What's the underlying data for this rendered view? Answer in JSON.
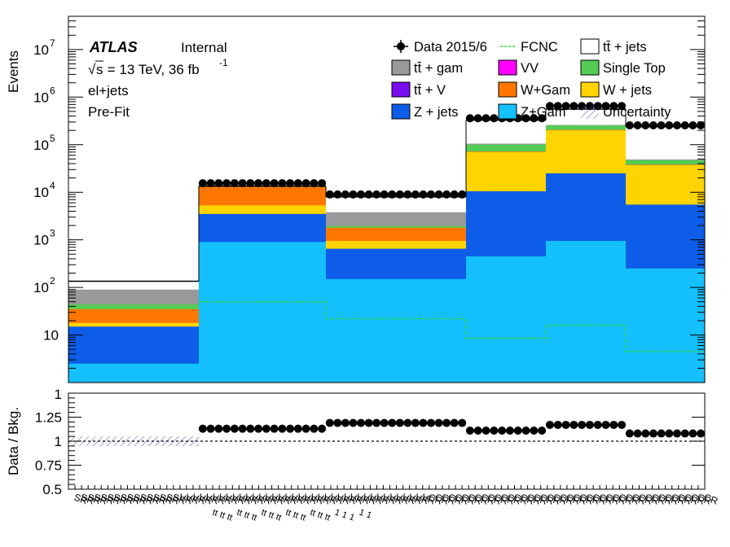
{
  "chart_data": [
    {
      "type": "bar",
      "subtype": "stacked-histogram",
      "title": "",
      "ylabel": "Events",
      "y_scale": "log",
      "ylim": [
        1,
        50000000
      ],
      "y_ticks": [
        {
          "value": 10,
          "label": "10"
        },
        {
          "value": 100,
          "label": "10",
          "sup": "2"
        },
        {
          "value": 1000,
          "label": "10",
          "sup": "3"
        },
        {
          "value": 10000,
          "label": "10",
          "sup": "4"
        },
        {
          "value": 100000,
          "label": "10",
          "sup": "5"
        },
        {
          "value": 1000000,
          "label": "10",
          "sup": "6"
        },
        {
          "value": 10000000,
          "label": "10",
          "sup": "7"
        }
      ],
      "bins": [
        {
          "stack": {
            "z_gam": 2.5,
            "z_jets": 15,
            "w_jets": 18,
            "w_gam": 35,
            "single_top": 44,
            "tt_gam": 90,
            "tt_jets": 135
          },
          "data": null,
          "fcnc": null
        },
        {
          "stack": {
            "z_gam": 900,
            "z_jets": 3500,
            "w_jets": 5300,
            "w_gam": 13000,
            "single_top": 13200,
            "tt_gam": 13400,
            "tt_jets": 13500
          },
          "data": 15500,
          "fcnc": 50
        },
        {
          "stack": {
            "z_gam": 150,
            "z_jets": 650,
            "w_jets": 950,
            "w_gam": 1800,
            "single_top": 1950,
            "tt_gam": 3800,
            "tt_jets": 8000
          },
          "data": 9000,
          "fcnc": 22
        },
        {
          "stack": {
            "z_gam": 450,
            "z_jets": 10500,
            "w_jets": 70000,
            "w_gam": 72000,
            "single_top": 100000,
            "tt_gam": 105000,
            "tt_jets": 330000
          },
          "data": 360000,
          "fcnc": 8.5
        },
        {
          "stack": {
            "z_gam": 950,
            "z_jets": 25000,
            "w_jets": 200000,
            "w_gam": 205000,
            "single_top": 255000,
            "tt_gam": 260000,
            "tt_jets": 560000
          },
          "data": 650000,
          "fcnc": 16
        },
        {
          "stack": {
            "z_gam": 250,
            "z_jets": 5500,
            "w_jets": 37000,
            "w_gam": 38000,
            "single_top": 47000,
            "tt_gam": 49000,
            "tt_jets": 240000
          },
          "data": 255000,
          "fcnc": 4.5
        }
      ],
      "series": [
        {
          "key": "tt_jets",
          "name": "tt̄ + jets",
          "color": "#ffffff"
        },
        {
          "key": "tt_gam",
          "name": "tt̄ +  gam",
          "color": "#999999"
        },
        {
          "key": "single_top",
          "name": "Single Top",
          "color": "#55cc55"
        },
        {
          "key": "w_gam",
          "name": "W+Gam",
          "color": "#ff7700"
        },
        {
          "key": "w_jets",
          "name": "W + jets",
          "color": "#ffd400"
        },
        {
          "key": "z_jets",
          "name": "Z + jets",
          "color": "#0d5de8"
        },
        {
          "key": "z_gam",
          "name": "Z+Gam",
          "color": "#14c0ff"
        },
        {
          "key": "tt_v",
          "name": "tt̄ + V",
          "color": "#7a0cf0"
        },
        {
          "key": "vv",
          "name": "VV",
          "color": "#ff00ff"
        }
      ]
    },
    {
      "type": "scatter",
      "subtype": "ratio",
      "ylabel": "Data / Bkg.",
      "ylim": [
        0.5,
        1.5
      ],
      "y_ticks": [
        {
          "value": 0.5,
          "label": "0.5"
        },
        {
          "value": 0.75,
          "label": "0.75"
        },
        {
          "value": 1,
          "label": "1"
        },
        {
          "value": 1.25,
          "label": "1.25"
        }
      ],
      "y_top_label": "1",
      "reference_line": 1,
      "ratios": [
        null,
        1.13,
        1.19,
        1.11,
        1.17,
        1.08
      ]
    }
  ],
  "legend": {
    "items": [
      {
        "label": "Data 2015/6",
        "marker": "data"
      },
      {
        "label": "FCNC",
        "marker": "dashed-line",
        "color": "#33dd33"
      },
      {
        "label": "tt̄ + jets",
        "marker": "box",
        "color": "#ffffff"
      },
      {
        "label": "tt̄ +  gam",
        "marker": "box",
        "color": "#999999"
      },
      {
        "label": "VV",
        "marker": "box",
        "color": "#ff00ff"
      },
      {
        "label": "Single Top",
        "marker": "box",
        "color": "#55cc55"
      },
      {
        "label": "tt̄ + V",
        "marker": "box",
        "color": "#7a0cf0"
      },
      {
        "label": "W+Gam",
        "marker": "box",
        "color": "#ff7700"
      },
      {
        "label": "W + jets",
        "marker": "box",
        "color": "#ffd400"
      },
      {
        "label": "Z + jets",
        "marker": "box",
        "color": "#0d5de8"
      },
      {
        "label": "Z+Gam",
        "marker": "box",
        "color": "#14c0ff"
      },
      {
        "label": "Uncertainty",
        "marker": "hatch",
        "color": "#4444cc"
      }
    ]
  },
  "labels": {
    "atlas": "ATLAS",
    "internal": "Internal",
    "sqrt_s": "s",
    "energy": " = 13 TeV, 36 fb",
    "lumi_exp": "-1",
    "channel": "el+jets",
    "stage": "Pre-Fit"
  },
  "x_tick_labels": [
    "SR",
    "SR",
    "SR",
    "SR",
    "SR",
    "SR",
    "SR",
    "SR",
    "SR",
    "SR",
    "SR",
    "SR",
    "SR",
    "SR",
    "SR",
    "SR",
    "VR",
    "VR",
    "VR",
    "VR",
    "VR",
    "VR",
    "VR",
    "VR",
    "VR",
    "VR",
    "VR",
    "VR",
    "VR",
    "VR",
    "VR",
    "VR",
    "VR",
    "VR",
    "VR",
    "VR",
    "VR",
    "VR",
    "VR",
    "VR",
    "VR",
    "VR",
    "VR",
    "VR",
    "VR",
    "VR",
    "VR",
    "VR",
    "VR",
    "VR",
    "VR",
    "VR",
    "VR",
    "VR",
    "CR",
    "CR",
    "CR",
    "CR",
    "CR",
    "CR",
    "CR",
    "CR",
    "CR",
    "CR",
    "CR",
    "CR",
    "CR",
    "CR",
    "CR",
    "CR",
    "CR",
    "CR",
    "CR",
    "CR",
    "CR",
    "CR",
    "CR",
    "CR",
    "CR",
    "CR",
    "CR",
    "CR",
    "CR",
    "CR",
    "CR",
    "CR",
    "CR",
    "CR",
    "CR",
    "CR",
    "CR",
    "CR",
    "CR",
    "CR",
    "CR",
    "CR",
    "CR"
  ],
  "x_sublabels": [
    "tt",
    "tt",
    "tt",
    "tt",
    "tt",
    "tt",
    "tt",
    "tt",
    "tt",
    "tt",
    "tt",
    "tt",
    "tt",
    "tt",
    "tt",
    "1",
    "1",
    "1",
    "1",
    "1"
  ]
}
